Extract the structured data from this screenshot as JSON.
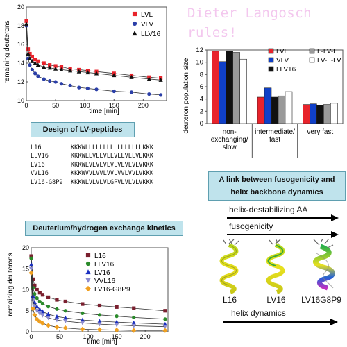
{
  "watermark": {
    "line1": "Dieter Langosch",
    "line2": "rules!"
  },
  "top_left_chart": {
    "ylabel": "remaining deuterons",
    "xlabel": "time [min]",
    "legend": [
      "LVL",
      "VLV",
      "LLV16"
    ]
  },
  "design_banner": "Design of LV-peptides",
  "peptides": [
    {
      "name": "L16",
      "seq": "KKKWLLLLLLLLLLLLLLLLKKK"
    },
    {
      "name": "LLV16",
      "seq": "KKKWLLVLLVLLVLLVLLVLKKK"
    },
    {
      "name": "LV16",
      "seq": "KKKWLVLVLVLVLVLVLVLVKKK"
    },
    {
      "name": "VVL16",
      "seq": "KKKWVVLVVLVVLVVLVVLVKKK"
    },
    {
      "name": "LV16-G8P9",
      "seq": "KKKWLVLVLVLGPVLVLVLVKKK"
    }
  ],
  "population_chart": {
    "ylabel": "deuteron population size",
    "legend": [
      "LVL",
      "VLV",
      "LLV16",
      "L-LV-L",
      "LV-L-LV"
    ],
    "groups": [
      "non-exchanging/slow",
      "intermediate/fast",
      "very fast"
    ],
    "group_lines": [
      [
        "non-",
        "exchanging/",
        "slow"
      ],
      [
        "intermediate/",
        "fast"
      ],
      [
        "very fast"
      ]
    ]
  },
  "link_banner": {
    "line1": "A link between fusogenicity and",
    "line2": "helix backbone dynamics"
  },
  "arrows": {
    "destab": "helix-destabilizing AA",
    "fuso": "fusogenicity",
    "dyn": "helix dynamics"
  },
  "helix_labels": [
    "L16",
    "LV16",
    "LV16G8P9"
  ],
  "dh_banner": "Deuterium/hydrogen exchange kinetics",
  "bottom_chart": {
    "ylabel": "remaining deuterons",
    "xlabel": "time [min]",
    "legend": [
      "L16",
      "LLV16",
      "LV16",
      "VVL16",
      "LV16-G8P9"
    ]
  },
  "chart_data": [
    {
      "type": "scatter",
      "xlabel": "time [min]",
      "ylabel": "remaining deuterons",
      "xlim": [
        0,
        240
      ],
      "ylim": [
        10,
        20
      ],
      "xticks": [
        0,
        50,
        100,
        150,
        200
      ],
      "yticks": [
        10,
        12,
        14,
        16,
        18,
        20
      ],
      "legend_position": "top-right",
      "colors": [
        "#e8232b",
        "#2b3fa8",
        "#111111"
      ],
      "markers": [
        "square",
        "circle",
        "triangle"
      ],
      "x": [
        0,
        3,
        6,
        10,
        15,
        20,
        30,
        40,
        50,
        60,
        75,
        90,
        105,
        120,
        150,
        180,
        210,
        230
      ],
      "series": [
        {
          "name": "LVL",
          "values": [
            18.5,
            15.5,
            15.0,
            14.7,
            14.4,
            14.2,
            14.0,
            13.8,
            13.7,
            13.6,
            13.4,
            13.3,
            13.2,
            13.1,
            12.9,
            12.7,
            12.5,
            12.4
          ]
        },
        {
          "name": "VLV",
          "values": [
            18.0,
            14.5,
            13.8,
            13.3,
            12.9,
            12.6,
            12.3,
            12.1,
            12.0,
            11.8,
            11.6,
            11.4,
            11.3,
            11.2,
            11.0,
            10.9,
            10.7,
            10.6
          ]
        },
        {
          "name": "LLV16",
          "values": [
            18.2,
            15.0,
            14.5,
            14.2,
            14.0,
            13.8,
            13.6,
            13.5,
            13.4,
            13.3,
            13.2,
            13.1,
            13.0,
            12.9,
            12.7,
            12.5,
            12.3,
            12.2
          ]
        }
      ]
    },
    {
      "type": "bar",
      "ylabel": "deuteron population size",
      "categories": [
        "non-exchanging/slow",
        "intermediate/fast",
        "very fast"
      ],
      "ylim": [
        0,
        12
      ],
      "yticks": [
        0,
        2,
        4,
        6,
        8,
        10,
        12
      ],
      "legend_position": "top-right",
      "series": [
        {
          "name": "LVL",
          "color": "#e8232b",
          "values": [
            11.8,
            4.3,
            3.1
          ]
        },
        {
          "name": "VLV",
          "color": "#1040c8",
          "values": [
            10.1,
            5.8,
            3.2
          ]
        },
        {
          "name": "LLV16",
          "color": "#111111",
          "values": [
            11.8,
            4.3,
            3.0
          ]
        },
        {
          "name": "L-LV-L",
          "color": "#9a9a9a",
          "values": [
            11.6,
            4.5,
            3.1
          ]
        },
        {
          "name": "LV-L-LV",
          "color": "#ffffff",
          "values": [
            10.5,
            5.2,
            3.3
          ]
        }
      ]
    },
    {
      "type": "scatter",
      "xlabel": "time [min]",
      "ylabel": "remaining deuterons",
      "xlim": [
        0,
        240
      ],
      "ylim": [
        0,
        20
      ],
      "xticks": [
        0,
        50,
        100,
        150,
        200
      ],
      "yticks": [
        0,
        5,
        10,
        15,
        20
      ],
      "legend_position": "top-right",
      "x": [
        0,
        3,
        6,
        10,
        15,
        20,
        30,
        45,
        60,
        90,
        120,
        150,
        180,
        235
      ],
      "series": [
        {
          "name": "L16",
          "color": "#7a1f2e",
          "marker": "square",
          "values": [
            18,
            12.5,
            11.0,
            10.0,
            9.3,
            8.8,
            8.2,
            7.6,
            7.2,
            6.6,
            6.2,
            5.9,
            5.6,
            5.0
          ]
        },
        {
          "name": "LLV16",
          "color": "#2a8a2a",
          "marker": "circle",
          "values": [
            17.5,
            10.5,
            9.0,
            8.0,
            7.2,
            6.7,
            6.0,
            5.4,
            5.0,
            4.4,
            4.0,
            3.7,
            3.4,
            3.0
          ]
        },
        {
          "name": "LV16",
          "color": "#1a2fc0",
          "marker": "triangle",
          "values": [
            16,
            8.5,
            7.0,
            6.0,
            5.3,
            4.8,
            4.2,
            3.6,
            3.3,
            2.8,
            2.5,
            2.3,
            2.1,
            1.8
          ]
        },
        {
          "name": "VVL16",
          "color": "#8c8cd0",
          "marker": "triangle-down",
          "values": [
            15,
            7.5,
            6.0,
            5.0,
            4.3,
            3.9,
            3.3,
            2.8,
            2.5,
            2.1,
            1.8,
            1.6,
            1.4,
            1.2
          ]
        },
        {
          "name": "LV16-G8P9",
          "color": "#f0a020",
          "marker": "diamond",
          "values": [
            14,
            5.5,
            4.0,
            3.0,
            2.4,
            2.0,
            1.5,
            1.1,
            0.9,
            0.6,
            0.5,
            0.4,
            0.3,
            0.3
          ]
        }
      ]
    }
  ]
}
